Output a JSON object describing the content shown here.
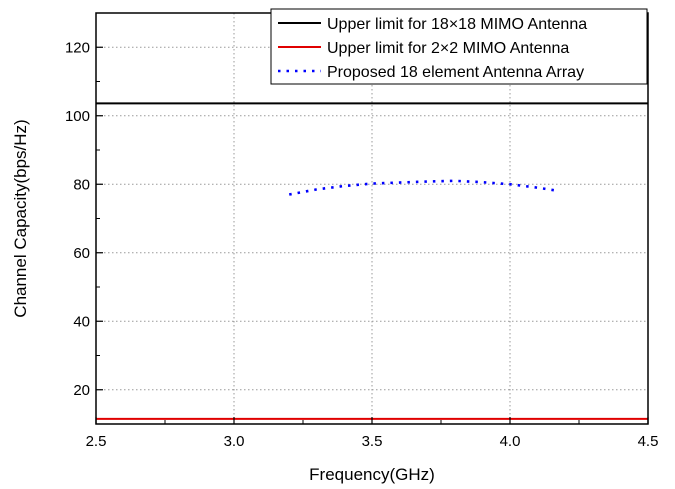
{
  "chart_data": {
    "type": "line",
    "xlabel": "Frequency(GHz)",
    "ylabel": "Channel Capacity(bps/Hz)",
    "xlim": [
      2.5,
      4.5
    ],
    "ylim": [
      10,
      130
    ],
    "x_ticks": [
      2.5,
      3.0,
      3.5,
      4.0,
      4.5
    ],
    "x_tick_labels": [
      "2.5",
      "3.0",
      "3.5",
      "4.0",
      "4.5"
    ],
    "y_ticks": [
      20,
      40,
      60,
      80,
      100,
      120
    ],
    "y_tick_labels": [
      "20",
      "40",
      "60",
      "80",
      "100",
      "120"
    ],
    "grid": true,
    "legend_position": "top-right",
    "series": [
      {
        "name": "Upper limit for 18×18 MIMO Antenna",
        "color": "#000000",
        "style": "solid",
        "x": [
          2.5,
          4.5
        ],
        "y": [
          103.6,
          103.6
        ]
      },
      {
        "name": "Upper limit for 2×2 MIMO Antenna",
        "color": "#e00000",
        "style": "solid",
        "x": [
          2.5,
          4.5
        ],
        "y": [
          11.5,
          11.5
        ]
      },
      {
        "name": "Proposed 18 element Antenna Array",
        "color": "#0000ff",
        "style": "dotted",
        "x": [
          3.2,
          3.3,
          3.4,
          3.5,
          3.6,
          3.7,
          3.8,
          3.9,
          4.0,
          4.1,
          4.18
        ],
        "y": [
          77.0,
          78.5,
          79.5,
          80.2,
          80.5,
          80.8,
          81.0,
          80.6,
          80.0,
          79.0,
          78.0
        ]
      }
    ]
  }
}
